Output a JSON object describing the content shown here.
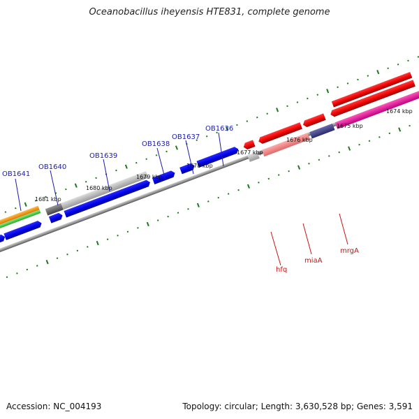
{
  "title": "Oceanobacillus iheyensis HTE831, complete genome",
  "footer": {
    "accession": "Accession: NC_004193",
    "summary": "Topology: circular; Length: 3,630,528 bp; Genes: 3,591"
  },
  "kbp_labels": [
    "1674 kbp",
    "1675 kbp",
    "1676 kbp",
    "1677 kbp",
    "1678 kbp",
    "1679 kbp",
    "1680 kbp",
    "1681 kbp"
  ],
  "forward_gene_labels": [
    "OB1641",
    "OB1640",
    "OB1639",
    "OB1638",
    "OB1637",
    "OB1636"
  ],
  "reverse_gene_labels": [
    "hfq",
    "miaA",
    "mrgA"
  ],
  "colors": {
    "forward_gene": "#0000ee",
    "reverse_gene": "#ee0000",
    "tick": "#1a7a1a",
    "backbone": "#888888"
  }
}
